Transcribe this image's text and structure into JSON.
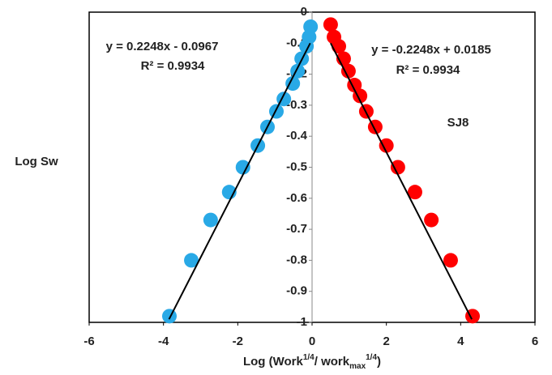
{
  "chart_data": {
    "type": "scatter",
    "ylabel": "Log Sw",
    "xlabel_parts": [
      "Log (Work",
      "1/4",
      "/ work",
      "max",
      "1/4",
      ")"
    ],
    "xlim": [
      -6,
      6
    ],
    "xticks": [
      -6,
      -4,
      -2,
      0,
      2,
      4,
      6
    ],
    "ylim": [
      -1,
      0
    ],
    "yticks": [
      0,
      -0.1,
      -0.2,
      -0.3,
      -0.4,
      -0.5,
      -0.6,
      -0.7,
      -0.8,
      -0.9,
      -1
    ],
    "series": [
      {
        "color": "#29a9e6",
        "x": [
          -0.04,
          -0.08,
          -0.15,
          -0.28,
          -0.39,
          -0.52,
          -0.76,
          -0.96,
          -1.2,
          -1.46,
          -1.86,
          -2.23,
          -2.73,
          -3.25,
          -3.84
        ],
        "values": [
          -0.047,
          -0.08,
          -0.11,
          -0.15,
          -0.19,
          -0.23,
          -0.28,
          -0.32,
          -0.37,
          -0.43,
          -0.5,
          -0.58,
          -0.67,
          -0.8,
          -0.98
        ]
      },
      {
        "color": "#ff0000",
        "x": [
          0.5,
          0.59,
          0.72,
          0.85,
          0.98,
          1.14,
          1.29,
          1.46,
          1.7,
          2.0,
          2.31,
          2.77,
          3.21,
          3.73,
          4.32
        ],
        "values": [
          -0.04,
          -0.08,
          -0.11,
          -0.15,
          -0.19,
          -0.235,
          -0.27,
          -0.32,
          -0.37,
          -0.43,
          -0.5,
          -0.58,
          -0.67,
          -0.8,
          -0.98
        ]
      }
    ],
    "trendlines": [
      {
        "color": "#000000",
        "x": [
          -3.85,
          -0.05
        ],
        "values": [
          -0.99,
          -0.1
        ]
      },
      {
        "color": "#000000",
        "x": [
          0.5,
          4.3
        ],
        "values": [
          -0.1,
          -0.99
        ]
      }
    ],
    "annotations": [
      "y = 0.2248x - 0.0967",
      "R² = 0.9934",
      "y = -0.2248x + 0.0185",
      "R² = 0.9934",
      "SJ8"
    ]
  }
}
